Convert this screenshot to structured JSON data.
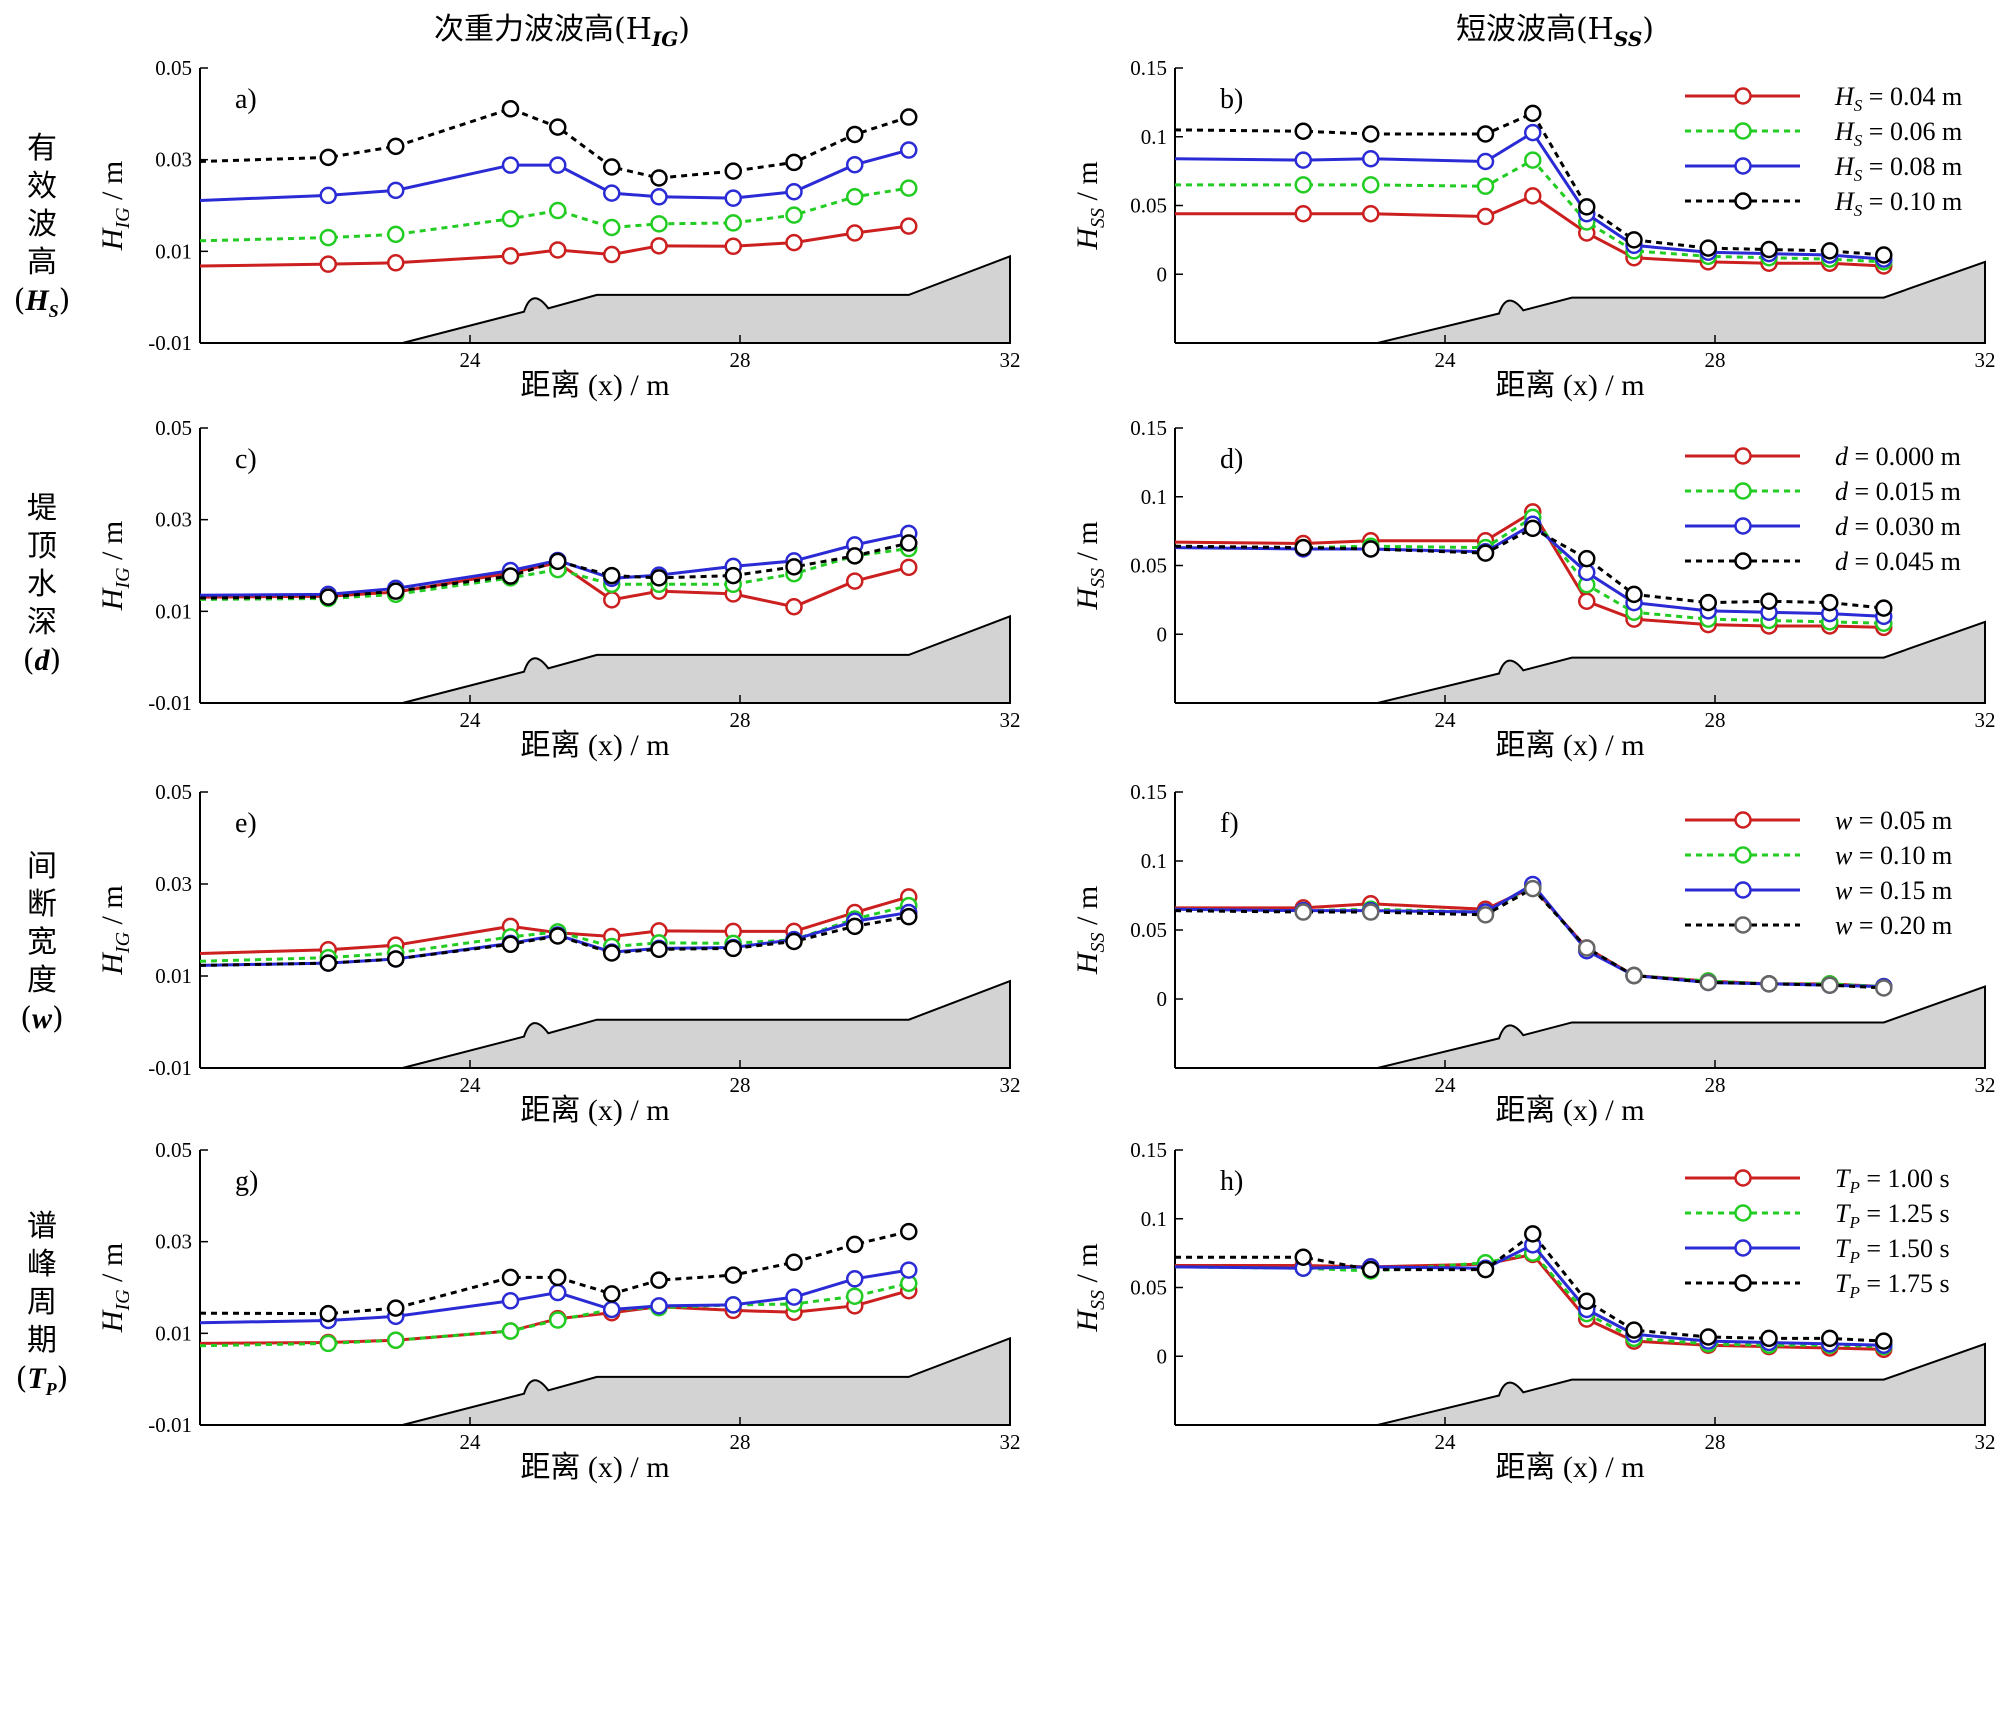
{
  "column_titles": {
    "left": "次重力波波高(H",
    "left_sub": "IG",
    "right": "短波波高(H",
    "right_sub": "SS"
  },
  "row_labels": [
    {
      "text": "有效波高",
      "symbol": "H",
      "sub": "S"
    },
    {
      "text": "堤顶水深",
      "symbol": "d",
      "sub": ""
    },
    {
      "text": "间断宽度",
      "symbol": "w",
      "sub": ""
    },
    {
      "text": "谱峰周期",
      "symbol": "T",
      "sub": "P"
    }
  ],
  "colors": {
    "red": "#cc1f1f",
    "green": "#22cc22",
    "blue": "#2b2bd6",
    "black": "#000000",
    "gray": "#d3d3d3"
  },
  "chart_data": [
    {
      "id": "a",
      "panel_label": "a)",
      "type": "line",
      "ylabel": "H",
      "ylabel_sub": "IG",
      "yunit": " / m",
      "xlabel": "距离 (x) / m",
      "xlim": [
        20,
        32
      ],
      "ylim": [
        -0.01,
        0.05
      ],
      "yticks": [
        "-0.01",
        "0.01",
        "0.03",
        "0.05"
      ],
      "xticks": [
        "24",
        "28",
        "32"
      ],
      "x": [
        20,
        21.9,
        22.9,
        24.6,
        25.3,
        26.1,
        26.8,
        27.9,
        28.8,
        29.7,
        30.5
      ],
      "series": [
        {
          "values": [
            0.0068,
            0.0072,
            0.0075,
            0.009,
            0.0103,
            0.0093,
            0.0112,
            0.0111,
            0.0119,
            0.014,
            0.0155
          ]
        },
        {
          "values": [
            0.0123,
            0.013,
            0.0137,
            0.0171,
            0.0189,
            0.0152,
            0.016,
            0.0162,
            0.0179,
            0.0219,
            0.0238
          ]
        },
        {
          "values": [
            0.0211,
            0.0222,
            0.0233,
            0.0288,
            0.0288,
            0.0227,
            0.0219,
            0.0216,
            0.023,
            0.0289,
            0.0321
          ]
        },
        {
          "values": [
            0.0296,
            0.0305,
            0.0329,
            0.0411,
            0.0371,
            0.0284,
            0.026,
            0.0275,
            0.0294,
            0.0355,
            0.0393
          ]
        }
      ]
    },
    {
      "id": "b",
      "panel_label": "b)",
      "type": "line",
      "ylabel": "H",
      "ylabel_sub": "SS",
      "yunit": " / m",
      "xlabel": "距离 (x) / m",
      "xlim": [
        20,
        32
      ],
      "ylim": [
        -0.05,
        0.15
      ],
      "yticks": [
        "0",
        "0.05",
        "0.1",
        "0.15"
      ],
      "xticks": [
        "24",
        "28",
        "32"
      ],
      "x": [
        20,
        21.9,
        22.9,
        24.6,
        25.3,
        26.1,
        26.8,
        27.9,
        28.8,
        29.7,
        30.5
      ],
      "legend": [
        {
          "sym": "H",
          "sub": "S",
          "text": " = 0.04 m"
        },
        {
          "sym": "H",
          "sub": "S",
          "text": " = 0.06 m"
        },
        {
          "sym": "H",
          "sub": "S",
          "text": " = 0.08 m"
        },
        {
          "sym": "H",
          "sub": "S",
          "text": " = 0.10 m"
        }
      ],
      "series": [
        {
          "values": [
            0.044,
            0.044,
            0.044,
            0.042,
            0.057,
            0.03,
            0.012,
            0.009,
            0.008,
            0.008,
            0.006
          ]
        },
        {
          "values": [
            0.065,
            0.065,
            0.065,
            0.064,
            0.083,
            0.038,
            0.017,
            0.013,
            0.012,
            0.011,
            0.009
          ]
        },
        {
          "values": [
            0.084,
            0.083,
            0.084,
            0.082,
            0.103,
            0.044,
            0.021,
            0.016,
            0.015,
            0.014,
            0.011
          ]
        },
        {
          "values": [
            0.105,
            0.104,
            0.102,
            0.102,
            0.117,
            0.049,
            0.025,
            0.019,
            0.018,
            0.017,
            0.014
          ]
        }
      ]
    },
    {
      "id": "c",
      "panel_label": "c)",
      "type": "line",
      "ylabel": "H",
      "ylabel_sub": "IG",
      "yunit": " / m",
      "xlabel": "距离 (x) / m",
      "xlim": [
        20,
        32
      ],
      "ylim": [
        -0.01,
        0.05
      ],
      "yticks": [
        "-0.01",
        "0.01",
        "0.03",
        "0.05"
      ],
      "xticks": [
        "24",
        "28",
        "32"
      ],
      "x": [
        20,
        21.9,
        22.9,
        24.6,
        25.3,
        26.1,
        26.8,
        27.9,
        28.8,
        29.7,
        30.5
      ],
      "series": [
        {
          "values": [
            0.0131,
            0.0133,
            0.0142,
            0.0184,
            0.0206,
            0.0125,
            0.0144,
            0.0138,
            0.011,
            0.0166,
            0.0196
          ]
        },
        {
          "values": [
            0.0126,
            0.0128,
            0.0137,
            0.0173,
            0.0191,
            0.0159,
            0.0159,
            0.0159,
            0.0182,
            0.0221,
            0.0237
          ]
        },
        {
          "values": [
            0.0135,
            0.0137,
            0.015,
            0.0189,
            0.0211,
            0.0172,
            0.0179,
            0.0198,
            0.021,
            0.0245,
            0.027
          ]
        },
        {
          "values": [
            0.0129,
            0.0131,
            0.0144,
            0.0177,
            0.0209,
            0.0178,
            0.0173,
            0.0178,
            0.0197,
            0.0221,
            0.0249
          ]
        }
      ]
    },
    {
      "id": "d",
      "panel_label": "d)",
      "type": "line",
      "ylabel": "H",
      "ylabel_sub": "SS",
      "yunit": " / m",
      "xlabel": "距离 (x) / m",
      "xlim": [
        20,
        32
      ],
      "ylim": [
        -0.05,
        0.15
      ],
      "yticks": [
        "0",
        "0.05",
        "0.1",
        "0.15"
      ],
      "xticks": [
        "24",
        "28",
        "32"
      ],
      "x": [
        20,
        21.9,
        22.9,
        24.6,
        25.3,
        26.1,
        26.8,
        27.9,
        28.8,
        29.7,
        30.5
      ],
      "legend": [
        {
          "sym": "d",
          "sub": "",
          "text": " = 0.000 m"
        },
        {
          "sym": "d",
          "sub": "",
          "text": " = 0.015 m"
        },
        {
          "sym": "d",
          "sub": "",
          "text": " = 0.030 m"
        },
        {
          "sym": "d",
          "sub": "",
          "text": " = 0.045 m"
        }
      ],
      "series": [
        {
          "values": [
            0.067,
            0.066,
            0.068,
            0.068,
            0.089,
            0.024,
            0.011,
            0.007,
            0.006,
            0.006,
            0.005
          ]
        },
        {
          "values": [
            0.064,
            0.063,
            0.064,
            0.063,
            0.085,
            0.036,
            0.016,
            0.011,
            0.01,
            0.009,
            0.008
          ]
        },
        {
          "values": [
            0.063,
            0.062,
            0.062,
            0.06,
            0.08,
            0.045,
            0.023,
            0.017,
            0.016,
            0.015,
            0.013
          ]
        },
        {
          "values": [
            0.064,
            0.063,
            0.062,
            0.059,
            0.077,
            0.055,
            0.029,
            0.023,
            0.024,
            0.023,
            0.019
          ]
        }
      ]
    },
    {
      "id": "e",
      "panel_label": "e)",
      "type": "line",
      "ylabel": "H",
      "ylabel_sub": "IG",
      "yunit": " / m",
      "xlabel": "距离 (x) / m",
      "xlim": [
        20,
        32
      ],
      "ylim": [
        -0.01,
        0.05
      ],
      "yticks": [
        "-0.01",
        "0.01",
        "0.03",
        "0.05"
      ],
      "xticks": [
        "24",
        "28",
        "32"
      ],
      "x": [
        20,
        21.9,
        22.9,
        24.6,
        25.3,
        26.1,
        26.8,
        27.9,
        28.8,
        29.7,
        30.5
      ],
      "series": [
        {
          "values": [
            0.0149,
            0.0157,
            0.0167,
            0.0208,
            0.0194,
            0.0186,
            0.0198,
            0.0197,
            0.0197,
            0.0238,
            0.0272
          ]
        },
        {
          "values": [
            0.0132,
            0.014,
            0.015,
            0.0185,
            0.0196,
            0.0164,
            0.0172,
            0.0171,
            0.0179,
            0.0224,
            0.0253
          ]
        },
        {
          "values": [
            0.0123,
            0.0128,
            0.0137,
            0.0171,
            0.0189,
            0.0152,
            0.016,
            0.0162,
            0.0179,
            0.0219,
            0.0238
          ]
        },
        {
          "values": [
            0.0123,
            0.0128,
            0.0137,
            0.0169,
            0.0187,
            0.015,
            0.0158,
            0.016,
            0.0175,
            0.0208,
            0.0229
          ]
        }
      ]
    },
    {
      "id": "f",
      "panel_label": "f)",
      "type": "line",
      "ylabel": "H",
      "ylabel_sub": "SS",
      "yunit": " / m",
      "xlabel": "距离 (x) / m",
      "xlim": [
        20,
        32
      ],
      "ylim": [
        -0.05,
        0.15
      ],
      "yticks": [
        "0",
        "0.05",
        "0.1",
        "0.15"
      ],
      "xticks": [
        "24",
        "28",
        "32"
      ],
      "x": [
        20,
        21.9,
        22.9,
        24.6,
        25.3,
        26.1,
        26.8,
        27.9,
        28.8,
        29.7,
        30.5
      ],
      "legend": [
        {
          "sym": "w",
          "sub": "",
          "text": " = 0.05 m"
        },
        {
          "sym": "w",
          "sub": "",
          "text": " = 0.10 m"
        },
        {
          "sym": "w",
          "sub": "",
          "text": " = 0.15 m"
        },
        {
          "sym": "w",
          "sub": "",
          "text": " = 0.20 m"
        }
      ],
      "series": [
        {
          "values": [
            0.066,
            0.066,
            0.069,
            0.065,
            0.081,
            0.037,
            0.017,
            0.013,
            0.011,
            0.011,
            0.009
          ]
        },
        {
          "values": [
            0.065,
            0.064,
            0.065,
            0.063,
            0.081,
            0.036,
            0.017,
            0.013,
            0.011,
            0.011,
            0.009
          ]
        },
        {
          "values": [
            0.065,
            0.064,
            0.064,
            0.063,
            0.083,
            0.035,
            0.017,
            0.012,
            0.011,
            0.01,
            0.009
          ]
        },
        {
          "values": [
            0.064,
            0.063,
            0.063,
            0.061,
            0.08,
            0.037,
            0.017,
            0.012,
            0.011,
            0.01,
            0.008
          ]
        }
      ]
    },
    {
      "id": "g",
      "panel_label": "g)",
      "type": "line",
      "ylabel": "H",
      "ylabel_sub": "IG",
      "yunit": " / m",
      "xlabel": "距离 (x) / m",
      "xlim": [
        20,
        32
      ],
      "ylim": [
        -0.01,
        0.05
      ],
      "yticks": [
        "-0.01",
        "0.01",
        "0.03",
        "0.05"
      ],
      "xticks": [
        "24",
        "28",
        "32"
      ],
      "x": [
        20,
        21.9,
        22.9,
        24.6,
        25.3,
        26.1,
        26.8,
        27.9,
        28.8,
        29.7,
        30.5
      ],
      "series": [
        {
          "values": [
            0.0078,
            0.008,
            0.0085,
            0.0105,
            0.0132,
            0.0145,
            0.0158,
            0.015,
            0.0146,
            0.016,
            0.0193
          ]
        },
        {
          "values": [
            0.0073,
            0.0078,
            0.0085,
            0.0105,
            0.0129,
            0.0152,
            0.0156,
            0.0162,
            0.0164,
            0.0181,
            0.0209
          ]
        },
        {
          "values": [
            0.0123,
            0.0128,
            0.0137,
            0.0171,
            0.0189,
            0.0152,
            0.016,
            0.0162,
            0.0179,
            0.0219,
            0.0238
          ]
        },
        {
          "values": [
            0.0144,
            0.0143,
            0.0155,
            0.0222,
            0.0222,
            0.0186,
            0.0216,
            0.0227,
            0.0255,
            0.0294,
            0.0322
          ]
        }
      ]
    },
    {
      "id": "h",
      "panel_label": "h)",
      "type": "line",
      "ylabel": "H",
      "ylabel_sub": "SS",
      "yunit": " / m",
      "xlabel": "距离 (x) / m",
      "xlim": [
        20,
        32
      ],
      "ylim": [
        -0.05,
        0.15
      ],
      "yticks": [
        "0",
        "0.05",
        "0.1",
        "0.15"
      ],
      "xticks": [
        "24",
        "28",
        "32"
      ],
      "x": [
        20,
        21.9,
        22.9,
        24.6,
        25.3,
        26.1,
        26.8,
        27.9,
        28.8,
        29.7,
        30.5
      ],
      "legend": [
        {
          "sym": "T",
          "sub": "P",
          "text": " = 1.00 s"
        },
        {
          "sym": "T",
          "sub": "P",
          "text": " = 1.25 s"
        },
        {
          "sym": "T",
          "sub": "P",
          "text": " = 1.50 s"
        },
        {
          "sym": "T",
          "sub": "P",
          "text": " = 1.75 s"
        }
      ],
      "series": [
        {
          "values": [
            0.066,
            0.066,
            0.065,
            0.067,
            0.074,
            0.027,
            0.011,
            0.008,
            0.007,
            0.006,
            0.005
          ]
        },
        {
          "values": [
            0.065,
            0.064,
            0.062,
            0.068,
            0.075,
            0.031,
            0.013,
            0.009,
            0.008,
            0.008,
            0.007
          ]
        },
        {
          "values": [
            0.065,
            0.064,
            0.065,
            0.064,
            0.081,
            0.034,
            0.016,
            0.011,
            0.01,
            0.009,
            0.008
          ]
        },
        {
          "values": [
            0.072,
            0.072,
            0.063,
            0.063,
            0.089,
            0.04,
            0.019,
            0.014,
            0.013,
            0.013,
            0.011
          ]
        }
      ]
    }
  ]
}
